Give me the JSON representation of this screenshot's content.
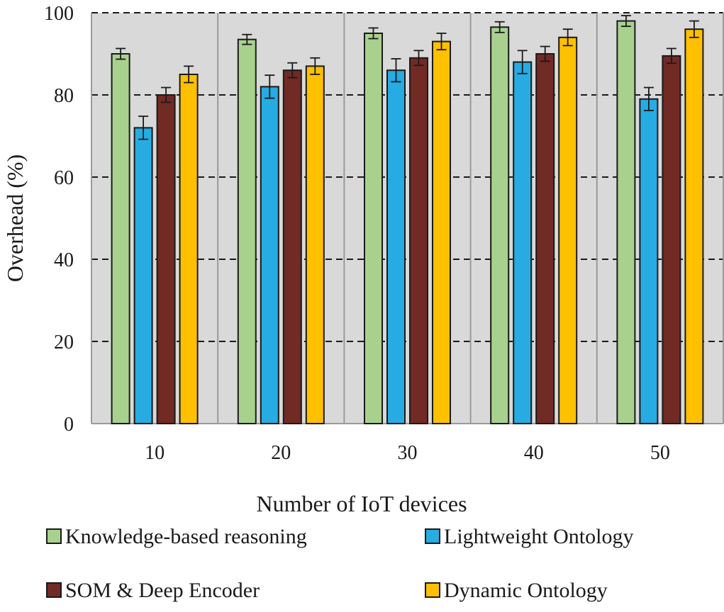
{
  "chart_data": {
    "type": "bar",
    "title": "",
    "xlabel": "Number of IoT devices",
    "ylabel": "Overhead (%)",
    "ylim": [
      0,
      100
    ],
    "yticks": [
      0,
      20,
      40,
      60,
      80,
      100
    ],
    "grid": "dashed horizontal",
    "categories": [
      "10",
      "20",
      "30",
      "40",
      "50"
    ],
    "series": [
      {
        "name": "Knowledge-based reasoning",
        "color": "#a9d18e",
        "values": [
          90,
          93.5,
          95,
          96.5,
          98
        ],
        "errors": [
          1.3,
          1.2,
          1.3,
          1.3,
          1.3
        ]
      },
      {
        "name": "Lightweight Ontology",
        "color": "#26ace2",
        "values": [
          72,
          82,
          86,
          88,
          79
        ],
        "errors": [
          2.8,
          2.8,
          2.8,
          2.8,
          2.8
        ]
      },
      {
        "name": "SOM & Deep Encoder",
        "color": "#722a24",
        "values": [
          80,
          86,
          89,
          90,
          89.5
        ],
        "errors": [
          1.8,
          1.8,
          1.8,
          1.8,
          1.8
        ]
      },
      {
        "name": "Dynamic Ontology",
        "color": "#ffc000",
        "values": [
          85,
          87,
          93,
          94,
          96
        ],
        "errors": [
          2,
          2,
          2,
          2,
          2
        ]
      }
    ],
    "legend_position": "bottom"
  }
}
